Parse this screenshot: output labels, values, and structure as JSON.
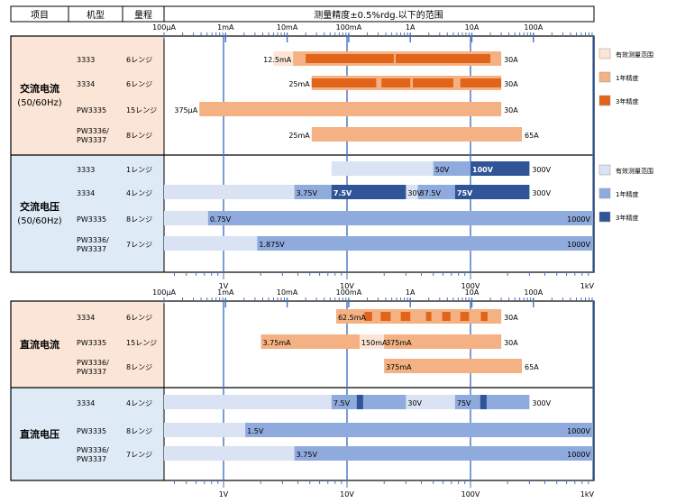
{
  "header": {
    "col_item": "项目",
    "col_model": "机型",
    "col_range": "量程",
    "title": "测量精度±0.5%rdg.以下的范围"
  },
  "current_ticks": [
    "100μA",
    "1mA",
    "10mA",
    "100mA",
    "1A",
    "10A",
    "100A"
  ],
  "voltage_ticks": [
    "1V",
    "10V",
    "100V",
    "1kV"
  ],
  "legend_current": [
    {
      "label": "有效测量范围",
      "color": "#fce4d6"
    },
    {
      "label": "1年精度",
      "color": "#f4b183"
    },
    {
      "label": "3年精度",
      "color": "#e0651a"
    }
  ],
  "legend_voltage": [
    {
      "label": "有效测量范围",
      "color": "#dae3f3"
    },
    {
      "label": "1年精度",
      "color": "#8faadc"
    },
    {
      "label": "3年精度",
      "color": "#2f5597"
    }
  ],
  "colors": {
    "cur_bg": "#fbe5d6",
    "volt_bg": "#deebf7",
    "grid": "#4472c4"
  },
  "chart_data": [
    {
      "type": "bar",
      "section": "AC",
      "groups": [
        {
          "name": "交流电流",
          "sub": "(50/60Hz)",
          "kind": "current",
          "rows": [
            {
              "model": [
                "3333"
              ],
              "ranges": "6レンジ",
              "label": "12.5mA",
              "max_label": "30A",
              "valid": [
                0.006,
                30
              ],
              "one_year": [
                [
                  12.5,
                  30000
                ]
              ],
              "three_year": [
                [
                  20,
                  540
                ],
                [
                  580,
                  20000
                ]
              ]
            },
            {
              "model": [
                "3334"
              ],
              "ranges": "6レンジ",
              "label": "25mA",
              "max_label": "30A",
              "valid": [
                0.6,
                30
              ],
              "one_year": [
                [
                  25,
                  30000
                ]
              ],
              "three_year": [
                [
                  25,
                  280
                ],
                [
                  340,
                  1000
                ],
                [
                  1100,
                  5000
                ],
                [
                  6500,
                  30000
                ]
              ]
            },
            {
              "model": [
                "PW3335"
              ],
              "ranges": "15レンジ",
              "label": "375μA",
              "max_label": "30A",
              "valid": [
                0.1,
                30
              ],
              "one_year": [
                [
                  0.375,
                  30000
                ]
              ],
              "three_year": []
            },
            {
              "model": [
                "PW3336/",
                "PW3337"
              ],
              "ranges": "8レンジ",
              "label": "25mA",
              "max_label": "65A",
              "valid": [
                1.5,
                65
              ],
              "one_year": [
                [
                  25,
                  65000
                ]
              ],
              "three_year": []
            }
          ]
        },
        {
          "name": "交流电压",
          "sub": "(50/60Hz)",
          "kind": "voltage",
          "rows": [
            {
              "model": [
                "3333"
              ],
              "ranges": "1レンジ",
              "max_label": "300V",
              "valid": [
                7.5,
                300
              ],
              "one_year": [
                [
                  50,
                  300
                ]
              ],
              "three_year": [
                [
                  100,
                  300
                ]
              ],
              "labels": [
                "50V",
                "100V"
              ]
            },
            {
              "model": [
                "3334"
              ],
              "ranges": "4レンジ",
              "max_label": "300V",
              "valid": [
                0.15,
                300
              ],
              "one_year": [
                [
                  3.75,
                  30
                ],
                [
                  37.5,
                  300
                ]
              ],
              "three_year": [
                [
                  7.5,
                  30
                ],
                [
                  75,
                  300
                ]
              ],
              "labels": [
                "3.75V",
                "7.5V",
                "30V",
                "37.5V",
                "75V"
              ]
            },
            {
              "model": [
                "PW3335"
              ],
              "ranges": "8レンジ",
              "max_label": "1000V",
              "valid": [
                0.15,
                1000
              ],
              "one_year": [
                [
                  0.75,
                  1000
                ]
              ],
              "three_year": [],
              "labels": [
                "0.75V"
              ]
            },
            {
              "model": [
                "PW3336/",
                "PW3337"
              ],
              "ranges": "7レンジ",
              "max_label": "1000V",
              "valid": [
                0.15,
                1000
              ],
              "one_year": [
                [
                  1.875,
                  1000
                ]
              ],
              "three_year": [],
              "labels": [
                "1.875V"
              ]
            }
          ]
        }
      ]
    },
    {
      "type": "bar",
      "section": "DC",
      "groups": [
        {
          "name": "直流电流",
          "sub": "",
          "kind": "current",
          "rows": [
            {
              "model": [
                "3334"
              ],
              "ranges": "6レンジ",
              "max_label": "30A",
              "valid": [
                0.6,
                30
              ],
              "one_year": [
                [
                  62.5,
                  30000
                ]
              ],
              "three_year": [
                [
                  180,
                  240
                ],
                [
                  330,
                  480
                ],
                [
                  700,
                  1000
                ],
                [
                  1800,
                  2200
                ],
                [
                  3300,
                  4500
                ],
                [
                  6500,
                  9000
                ],
                [
                  14000,
                  18000
                ]
              ],
              "labels": [
                "62.5mA"
              ]
            },
            {
              "model": [
                "PW3335"
              ],
              "ranges": "15レンジ",
              "max_label": "30A",
              "valid": [
                0.1,
                30
              ],
              "one_year": [
                [
                  3.75,
                  150
                ],
                [
                  375,
                  30000
                ]
              ],
              "three_year": [],
              "labels": [
                "3.75mA",
                "150mA",
                "375mA"
              ]
            },
            {
              "model": [
                "PW3336/",
                "PW3337"
              ],
              "ranges": "8レンジ",
              "max_label": "65A",
              "valid": [
                1.5,
                65
              ],
              "one_year": [
                [
                  375,
                  65000
                ]
              ],
              "three_year": [],
              "labels": [
                "375mA"
              ]
            }
          ]
        },
        {
          "name": "直流电压",
          "sub": "",
          "kind": "voltage",
          "rows": [
            {
              "model": [
                "3334"
              ],
              "ranges": "4レンジ",
              "max_label": "300V",
              "valid": [
                0.15,
                300
              ],
              "one_year": [
                [
                  7.5,
                  30
                ],
                [
                  75,
                  300
                ]
              ],
              "three_year": [
                [
                  12,
                  13.5
                ],
                [
                  120,
                  135
                ]
              ],
              "labels": [
                "7.5V",
                "30V",
                "75V"
              ]
            },
            {
              "model": [
                "PW3335"
              ],
              "ranges": "8レンジ",
              "max_label": "1000V",
              "valid": [
                0.15,
                1000
              ],
              "one_year": [
                [
                  1.5,
                  1000
                ]
              ],
              "three_year": [],
              "labels": [
                "1.5V"
              ]
            },
            {
              "model": [
                "PW3336/",
                "PW3337"
              ],
              "ranges": "7レンジ",
              "max_label": "1000V",
              "valid": [
                0.15,
                1000
              ],
              "one_year": [
                [
                  3.75,
                  1000
                ]
              ],
              "three_year": [],
              "labels": [
                "3.75V"
              ]
            }
          ]
        }
      ]
    }
  ]
}
